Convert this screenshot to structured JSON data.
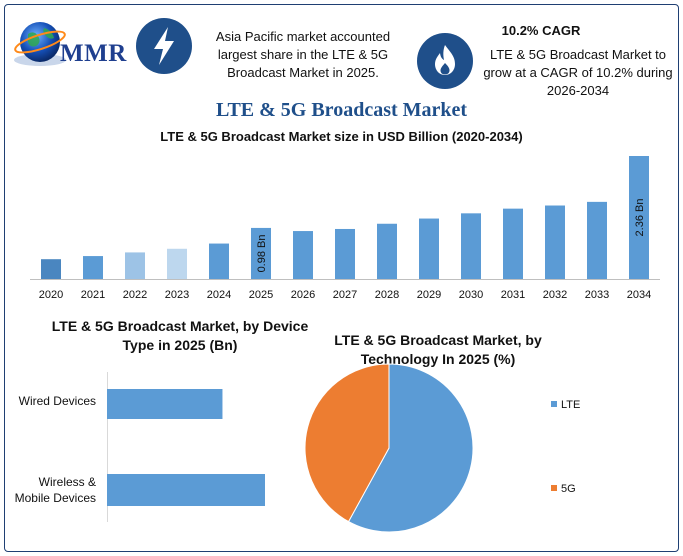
{
  "header": {
    "logo_text": "MMR",
    "logo_icon": "globe-icon",
    "insight1_icon": "lightning-bolt-icon",
    "insight1_text": "Asia Pacific market accounted largest share in the LTE & 5G Broadcast Market in 2025.",
    "insight2_icon": "flame-icon",
    "insight2_title": "10.2% CAGR",
    "insight2_text": "LTE & 5G Broadcast Market to grow at a CAGR of 10.2% during 2026-2034"
  },
  "main_title": "LTE & 5G Broadcast Market",
  "colors": {
    "frame": "#1f3f73",
    "accent": "#1f4f8a",
    "bar": "#5b9bd5",
    "bar_2020": "#4a86c0",
    "bar_2022": "#9dc3e6",
    "bar_2023": "#bdd7ee",
    "pie_lte": "#5b9bd5",
    "pie_5g": "#ed7d31"
  },
  "chart_data": [
    {
      "type": "bar",
      "title": "LTE & 5G Broadcast Market size in USD Billion (2020-2034)",
      "categories": [
        "2020",
        "2021",
        "2022",
        "2023",
        "2024",
        "2025",
        "2026",
        "2027",
        "2028",
        "2029",
        "2030",
        "2031",
        "2032",
        "2033",
        "2034"
      ],
      "values": [
        0.38,
        0.44,
        0.51,
        0.58,
        0.68,
        0.98,
        0.92,
        0.96,
        1.06,
        1.16,
        1.26,
        1.35,
        1.41,
        1.48,
        2.36
      ],
      "data_labels": [
        {
          "category": "2025",
          "text": "0.98 Bn"
        },
        {
          "category": "2034",
          "text": "2.36 Bn"
        }
      ],
      "grid": false
    },
    {
      "type": "bar",
      "orientation": "horizontal",
      "title": "LTE & 5G Broadcast Market, by Device Type in 2025 (Bn)",
      "categories": [
        "Wired Devices",
        "Wireless & Mobile Devices"
      ],
      "values": [
        0.38,
        0.52
      ],
      "grid": false
    },
    {
      "type": "pie",
      "title": "LTE & 5G Broadcast Market, by Technology In 2025 (%)",
      "categories": [
        "LTE",
        "5G"
      ],
      "values": [
        58,
        42
      ],
      "legend": "right"
    }
  ]
}
